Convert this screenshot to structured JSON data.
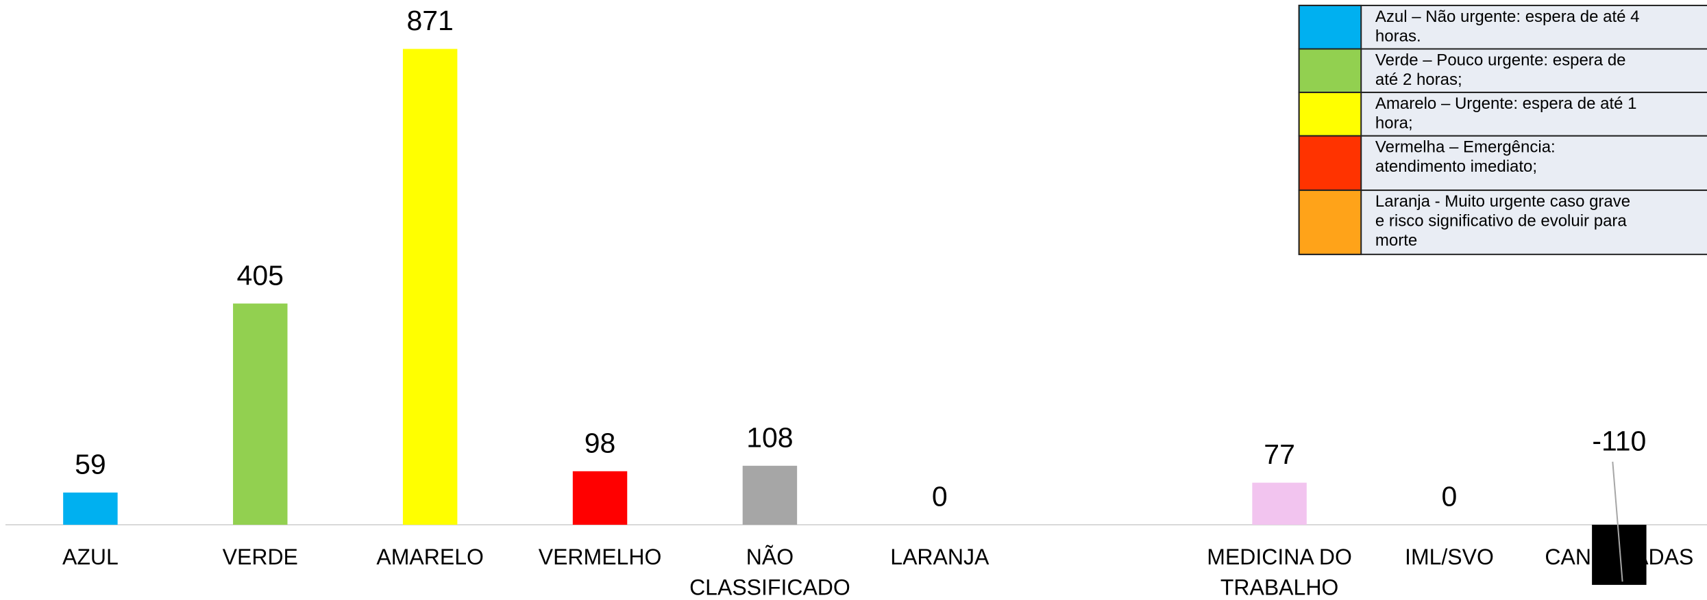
{
  "chart_data": {
    "type": "bar",
    "categories": [
      [
        "AZUL"
      ],
      [
        "VERDE"
      ],
      [
        "AMARELO"
      ],
      [
        "VERMELHO"
      ],
      [
        "NÃO",
        "CLASSIFICADO"
      ],
      [
        "LARANJA"
      ],
      null,
      [
        "MEDICINA DO",
        "TRABALHO"
      ],
      [
        "IML/SVO"
      ],
      [
        "CANCELADAS"
      ]
    ],
    "values": [
      59,
      405,
      871,
      98,
      108,
      0,
      null,
      77,
      0,
      -110
    ],
    "colors": [
      "#00b0f0",
      "#92d050",
      "#ffff00",
      "#ff0000",
      "#a6a6a6",
      "#ffa319",
      null,
      "#f2c4ef",
      "#7f7f7f",
      "#000000"
    ],
    "ylim": [
      -110,
      871
    ],
    "legend": [
      {
        "color": "#00b0f0",
        "lines": [
          "Azul – Não urgente: espera de até 4",
          "horas."
        ]
      },
      {
        "color": "#92d050",
        "lines": [
          "Verde – Pouco urgente: espera de",
          "até 2 horas;"
        ]
      },
      {
        "color": "#ffff00",
        "lines": [
          "Amarelo – Urgente: espera de até 1",
          "hora;"
        ]
      },
      {
        "color": "#ff3300",
        "lines": [
          "Vermelha – Emergência:",
          "atendimento imediato;"
        ]
      },
      {
        "color": "#ffa319",
        "lines": [
          "Laranja - Muito urgente caso grave",
          "e risco significativo de evoluir para",
          "morte"
        ]
      }
    ]
  }
}
